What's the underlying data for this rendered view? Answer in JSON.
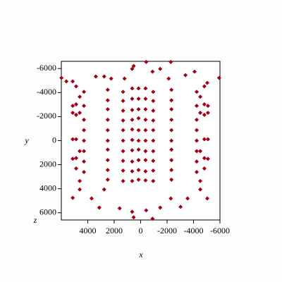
{
  "chart_data": {
    "type": "scatter",
    "xlabel": "x",
    "ylabel": "y",
    "zlabel": "z",
    "xlim": [
      6000,
      -6000
    ],
    "ylim": [
      -6600,
      6600
    ],
    "xticks": [
      4000,
      2000,
      0,
      -2000,
      -4000,
      -6000
    ],
    "yticks": [
      -6000,
      -4000,
      -2000,
      0,
      2000,
      4000,
      6000
    ],
    "color": "#a50012",
    "x": [
      2490,
      2490,
      2490,
      2490,
      2490,
      2490,
      2490,
      2490,
      2490,
      2490,
      1330,
      1330,
      1330,
      1330,
      1330,
      1330,
      1330,
      1330,
      1330,
      1330,
      640,
      640,
      640,
      640,
      640,
      640,
      640,
      640,
      640,
      640,
      160,
      160,
      160,
      160,
      160,
      160,
      160,
      160,
      160,
      160,
      -370,
      -370,
      -370,
      -370,
      -370,
      -370,
      -370,
      -370,
      -370,
      -370,
      -950,
      -950,
      -950,
      -950,
      -950,
      -950,
      -950,
      -950,
      -950,
      -950,
      -2330,
      -2330,
      -2330,
      -2330,
      -2330,
      -2330,
      -2330,
      -2330,
      -2330,
      -2330,
      4290,
      4290,
      4290,
      4290,
      4290,
      4290,
      4290,
      4290,
      4880,
      4880,
      4880,
      4880,
      4880,
      4880,
      5140,
      5140,
      5140,
      5140,
      4610,
      4610,
      4610,
      4610,
      4610,
      -4240,
      -4240,
      -4240,
      -4240,
      -4240,
      -4240,
      -4240,
      -4240,
      -4820,
      -4820,
      -4820,
      -4820,
      -4820,
      -4820,
      -5090,
      -5090,
      -5090,
      -5090,
      -4510,
      -4510,
      -4510,
      -4510,
      -4510,
      5990,
      5620,
      5140,
      3390,
      2760,
      2230,
      1220,
      640,
      530,
      -420,
      -900,
      -1480,
      -2120,
      -2280,
      -3390,
      -4080,
      -5940,
      -5040,
      5140,
      3710,
      3130,
      2760,
      1590,
      640,
      530,
      -420,
      -900,
      -1480,
      -2280,
      -3020,
      -3550,
      -5040
    ],
    "y": [
      -4230,
      -3360,
      -2610,
      -1740,
      -870,
      0,
      750,
      1620,
      2440,
      3250,
      -4060,
      -3310,
      -2490,
      -1680,
      -870,
      0,
      870,
      1680,
      2490,
      3360,
      -4350,
      -3480,
      -2550,
      -1740,
      -930,
      -60,
      810,
      1740,
      2550,
      3360,
      -4350,
      -3480,
      -2610,
      -1860,
      -870,
      0,
      750,
      1620,
      2440,
      3250,
      -4350,
      -3480,
      -2610,
      -1740,
      -870,
      0,
      870,
      1620,
      2550,
      3310,
      -4060,
      -3310,
      -2490,
      -1680,
      -870,
      0,
      870,
      1680,
      2490,
      3360,
      -4230,
      -3360,
      -2610,
      -1740,
      -870,
      0,
      750,
      1620,
      2440,
      3250,
      -4060,
      -2900,
      -1740,
      -870,
      0,
      870,
      1740,
      2610,
      -4520,
      -3020,
      -2150,
      -120,
      1450,
      2320,
      -2900,
      -2320,
      -120,
      1510,
      -3650,
      -2320,
      870,
      3360,
      4060,
      -4060,
      -2900,
      -1740,
      -870,
      0,
      870,
      1740,
      2610,
      -4520,
      -3020,
      -2150,
      -120,
      1450,
      2320,
      -2900,
      -2320,
      -120,
      1510,
      -3650,
      -2320,
      870,
      3360,
      4060,
      -5220,
      -4930,
      -4930,
      -5340,
      -5340,
      -5160,
      -5160,
      -5970,
      -6210,
      -6550,
      -5740,
      -5970,
      -5160,
      -6550,
      -5450,
      -5740,
      -5220,
      -4810,
      4760,
      4810,
      5570,
      4060,
      5630,
      5920,
      6380,
      5800,
      6500,
      5570,
      4810,
      5510,
      4810,
      4810
    ]
  }
}
